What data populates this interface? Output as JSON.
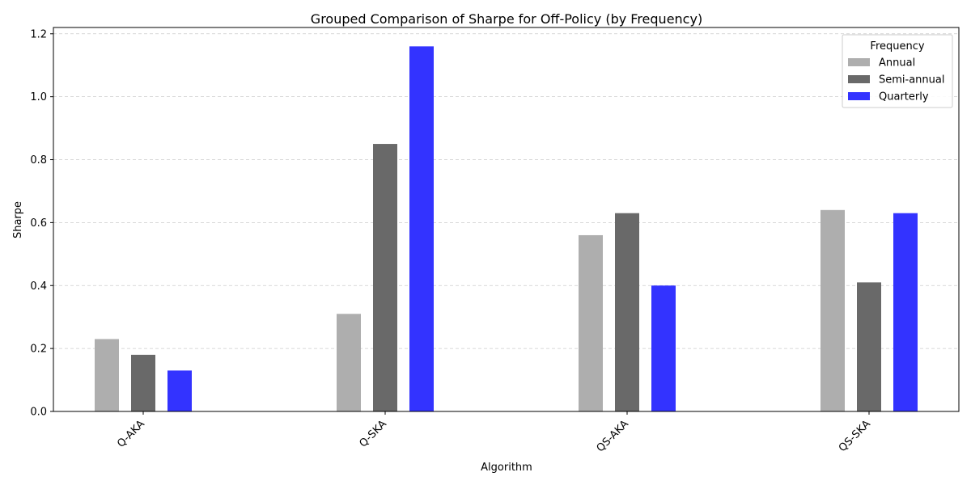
{
  "chart_data": {
    "type": "bar",
    "title": "Grouped Comparison of Sharpe for Off-Policy (by Frequency)",
    "xlabel": "Algorithm",
    "ylabel": "Sharpe",
    "categories": [
      "Q-AKA",
      "Q-SKA",
      "QS-AKA",
      "QS-SKA"
    ],
    "series": [
      {
        "name": "Annual",
        "color": "#aeaeae",
        "values": [
          0.23,
          0.31,
          0.56,
          0.64
        ]
      },
      {
        "name": "Semi-annual",
        "color": "#696969",
        "values": [
          0.18,
          0.85,
          0.63,
          0.41
        ]
      },
      {
        "name": "Quarterly",
        "color": "#3333ff",
        "values": [
          0.13,
          1.16,
          0.4,
          0.63
        ]
      }
    ],
    "ylim": [
      0,
      1.22
    ],
    "yticks": [
      "0.0",
      "0.2",
      "0.4",
      "0.6",
      "0.8",
      "1.0",
      "1.2"
    ],
    "grid": "y-dashed",
    "legend_title": "Frequency",
    "legend_position": "top-right"
  }
}
